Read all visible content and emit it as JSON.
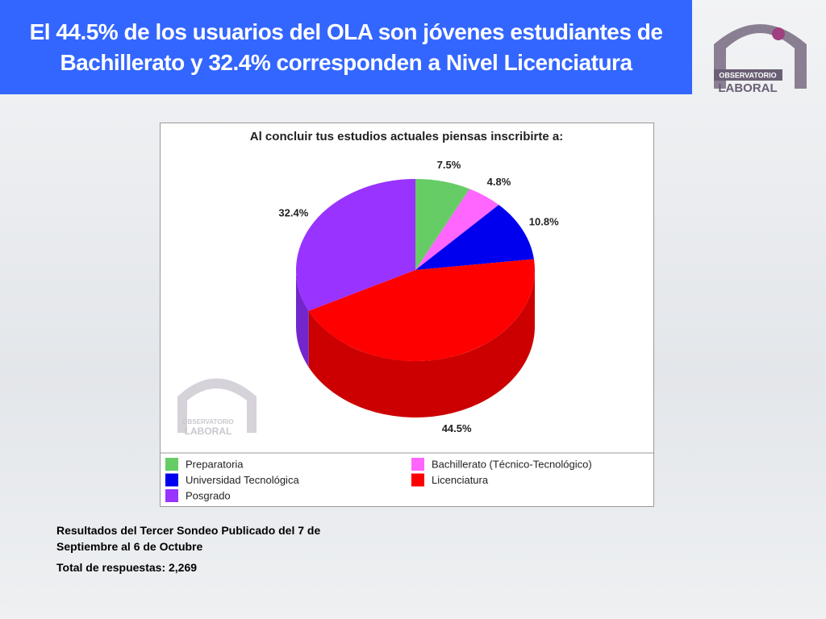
{
  "slide_title": [
    "El 44.5% de los usuarios del OLA son jóvenes estudiantes de",
    "Bachillerato y 32.4% corresponden a Nivel Licenciatura"
  ],
  "logo": {
    "line1": "OBSERVATORIO",
    "line2": "LABORAL"
  },
  "chart_data": {
    "type": "pie",
    "title": "Al concluir tus estudios actuales piensas inscribirte a:",
    "categories": [
      "Preparatoria",
      "Bachillerato (Técnico-Tecnológico)",
      "Universidad Tecnológica",
      "Licenciatura",
      "Posgrado"
    ],
    "values": [
      7.5,
      4.8,
      10.8,
      44.5,
      32.4
    ],
    "value_labels": [
      "7.5%",
      "4.8%",
      "10.8%",
      "44.5%",
      "32.4%"
    ],
    "colors": [
      "#66cc66",
      "#ff66ff",
      "#0000ee",
      "#ff0000",
      "#9933ff"
    ],
    "side_colors": [
      "#4fa84f",
      "#cc44cc",
      "#0000aa",
      "#cc0000",
      "#7326cc"
    ],
    "legend": "bottom"
  },
  "footer": {
    "lines": [
      "Resultados del Tercer Sondeo Publicado del 7 de",
      "Septiembre al 6 de Octubre"
    ],
    "total": "Total de respuestas: 2,269"
  }
}
